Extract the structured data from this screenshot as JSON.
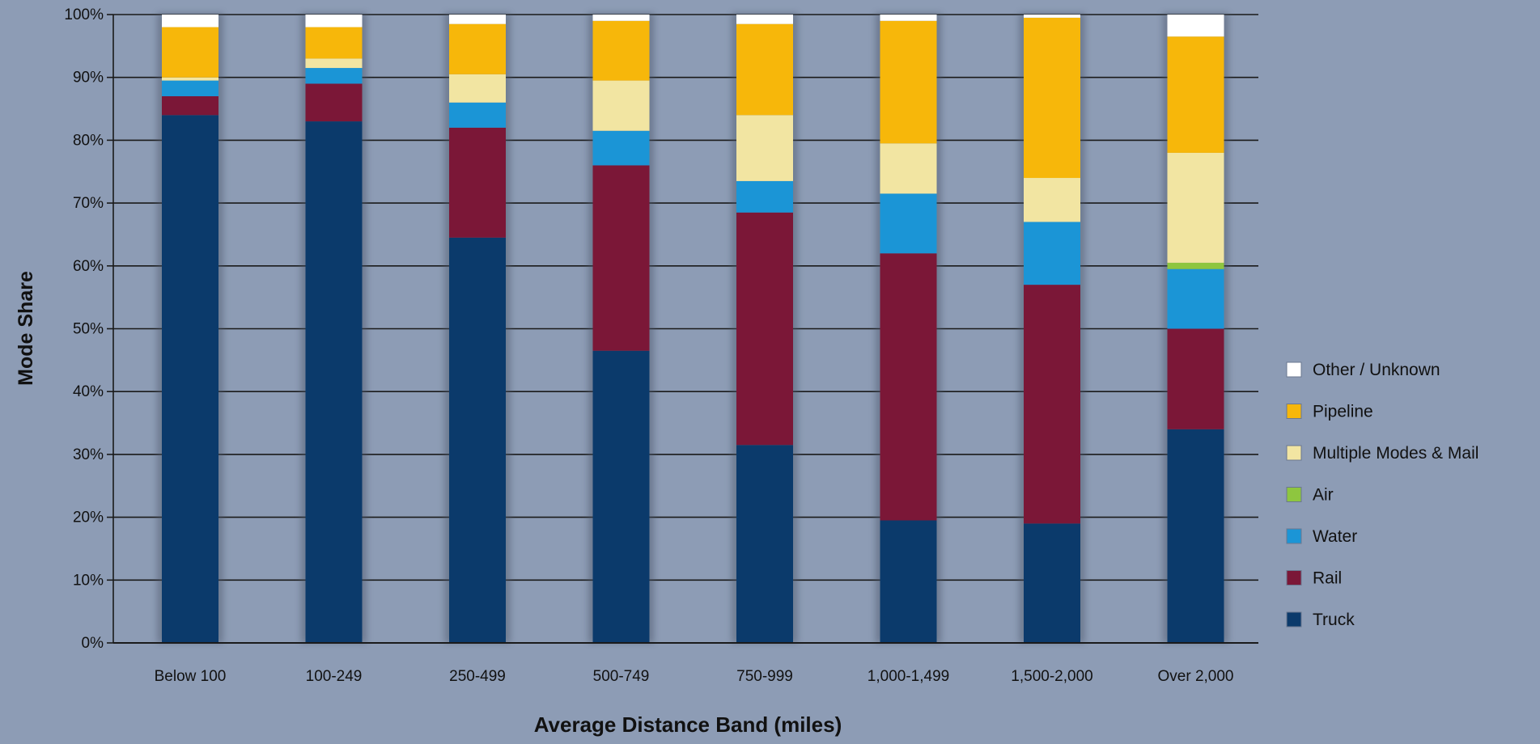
{
  "chart_data": {
    "type": "bar",
    "stacked": true,
    "title": "",
    "xlabel": "Average Distance Band (miles)",
    "ylabel": "Mode Share",
    "ylim": [
      0,
      100
    ],
    "yticks": [
      0,
      10,
      20,
      30,
      40,
      50,
      60,
      70,
      80,
      90,
      100
    ],
    "ytick_suffix": "%",
    "grid": true,
    "legend_position": "right",
    "categories": [
      "Below 100",
      "100-249",
      "250-499",
      "500-749",
      "750-999",
      "1,000-1,499",
      "1,500-2,000",
      "Over 2,000"
    ],
    "series": [
      {
        "name": "Truck",
        "color": "#0b3a6b",
        "values": [
          84,
          83,
          64.5,
          46.5,
          31.5,
          19.5,
          19,
          34
        ]
      },
      {
        "name": "Rail",
        "color": "#7b1737",
        "values": [
          3,
          6,
          17.5,
          29.5,
          37,
          42.5,
          38,
          16
        ]
      },
      {
        "name": "Water",
        "color": "#1b95d6",
        "values": [
          2.5,
          2.5,
          4,
          5.5,
          5,
          9.5,
          10,
          9.5
        ]
      },
      {
        "name": "Air",
        "color": "#8ec63f",
        "values": [
          0,
          0,
          0,
          0,
          0,
          0,
          0,
          1
        ]
      },
      {
        "name": "Multiple Modes & Mail",
        "color": "#f2e5a2",
        "values": [
          0.5,
          1.5,
          4.5,
          8,
          10.5,
          8,
          7,
          17.5
        ]
      },
      {
        "name": "Pipeline",
        "color": "#f7b70a",
        "values": [
          8,
          5,
          8,
          9.5,
          14.5,
          19.5,
          25.5,
          18.5
        ]
      },
      {
        "name": "Other / Unknown",
        "color": "#ffffff",
        "values": [
          2,
          2,
          1.5,
          1,
          1.5,
          1,
          0.5,
          3.5
        ]
      }
    ]
  }
}
